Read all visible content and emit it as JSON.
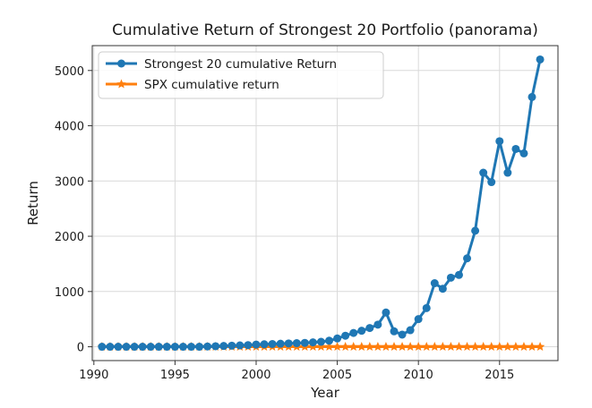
{
  "chart_data": {
    "type": "line",
    "title": "Cumulative Return of Strongest 20 Portfolio (panorama)",
    "xlabel": "Year",
    "ylabel": "Return",
    "xlim": [
      1989.9,
      2018.6
    ],
    "ylim": [
      -250,
      5450
    ],
    "xticks": [
      1990,
      1995,
      2000,
      2005,
      2010,
      2015
    ],
    "yticks": [
      0,
      1000,
      2000,
      3000,
      4000,
      5000
    ],
    "grid": true,
    "legend_position": "top-left",
    "series": [
      {
        "name": "Strongest 20 cumulative Return",
        "color": "#1f77b4",
        "marker": "circle",
        "x": [
          1990.5,
          1991,
          1991.5,
          1992,
          1992.5,
          1993,
          1993.5,
          1994,
          1994.5,
          1995,
          1995.5,
          1996,
          1996.5,
          1997,
          1997.5,
          1998,
          1998.5,
          1999,
          1999.5,
          2000,
          2000.5,
          2001,
          2001.5,
          2002,
          2002.5,
          2003,
          2003.5,
          2004,
          2004.5,
          2005,
          2005.5,
          2006,
          2006.5,
          2007,
          2007.5,
          2008,
          2008.5,
          2009,
          2009.5,
          2010,
          2010.5,
          2011,
          2011.5,
          2012,
          2012.5,
          2013,
          2013.5,
          2014,
          2014.5,
          2015,
          2015.5,
          2016,
          2016.5,
          2017,
          2017.5
        ],
        "y": [
          0,
          0,
          0,
          0,
          0,
          0,
          0,
          0,
          0,
          0,
          0,
          0,
          0,
          5,
          10,
          15,
          20,
          25,
          30,
          40,
          45,
          50,
          55,
          60,
          65,
          70,
          80,
          90,
          110,
          150,
          200,
          250,
          290,
          340,
          400,
          620,
          280,
          220,
          300,
          500,
          700,
          1150,
          1050,
          1250,
          1300,
          1600,
          2100,
          3150,
          2980,
          3720,
          3150,
          3580,
          3500,
          4520,
          5200
        ]
      },
      {
        "name": "SPX cumulative return",
        "color": "#ff7f0e",
        "marker": "star",
        "x": [
          1990.5,
          1991,
          1991.5,
          1992,
          1992.5,
          1993,
          1993.5,
          1994,
          1994.5,
          1995,
          1995.5,
          1996,
          1996.5,
          1997,
          1997.5,
          1998,
          1998.5,
          1999,
          1999.5,
          2000,
          2000.5,
          2001,
          2001.5,
          2002,
          2002.5,
          2003,
          2003.5,
          2004,
          2004.5,
          2005,
          2005.5,
          2006,
          2006.5,
          2007,
          2007.5,
          2008,
          2008.5,
          2009,
          2009.5,
          2010,
          2010.5,
          2011,
          2011.5,
          2012,
          2012.5,
          2013,
          2013.5,
          2014,
          2014.5,
          2015,
          2015.5,
          2016,
          2016.5,
          2017,
          2017.5
        ],
        "y": [
          0,
          0,
          0,
          0,
          0,
          0,
          0,
          0,
          0,
          0,
          0,
          0,
          0,
          0,
          0,
          0,
          0,
          0,
          0,
          0,
          0,
          0,
          0,
          0,
          0,
          0,
          0,
          0,
          0,
          0,
          0,
          0,
          0,
          0,
          0,
          0,
          0,
          0,
          0,
          0,
          0,
          0,
          0,
          0,
          0,
          0,
          0,
          0,
          0,
          0,
          0,
          0,
          0,
          0,
          0
        ]
      }
    ]
  }
}
